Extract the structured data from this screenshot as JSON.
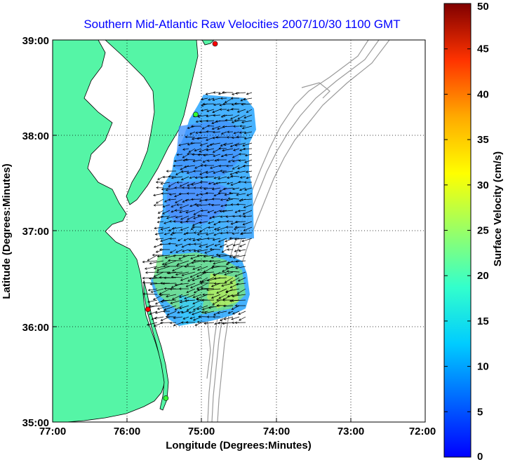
{
  "title": "Southern Mid-Atlantic Raw Velocities 2007/10/30 1100 GMT",
  "x_axis": {
    "label": "Longitude (Degrees:Minutes)",
    "ticks": [
      "77:00",
      "76:00",
      "75:00",
      "74:00",
      "73:00",
      "72:00"
    ],
    "range": [
      -77,
      -72
    ]
  },
  "y_axis": {
    "label": "Latitude (Degrees:Minutes)",
    "ticks": [
      "39:00",
      "38:00",
      "37:00",
      "36:00",
      "35:00"
    ],
    "range": [
      35,
      39
    ]
  },
  "colorbar": {
    "label": "Surface Velocity (cm/s)",
    "ticks": [
      "0",
      "5",
      "10",
      "15",
      "20",
      "25",
      "30",
      "35",
      "40",
      "45",
      "50"
    ],
    "range": [
      0,
      50
    ]
  },
  "colors": {
    "land": "#55f5a6",
    "coast": "#000000",
    "bathymetry": "#9a9a9a",
    "grid": "#000000",
    "title": "#0000ff"
  },
  "gridlines": "dotted",
  "stations": [
    {
      "lon": -74.82,
      "lat": 38.96,
      "status": "red"
    },
    {
      "lon": -75.08,
      "lat": 38.22,
      "status": "green"
    },
    {
      "lon": -75.72,
      "lat": 36.18,
      "status": "red"
    },
    {
      "lon": -75.48,
      "lat": 35.25,
      "status": "green"
    }
  ],
  "velocity_field_description": "Surface current vectors mostly 3-18 cm/s, flowing southwest with higher speeds (~20 cm/s) near 36.5N"
}
